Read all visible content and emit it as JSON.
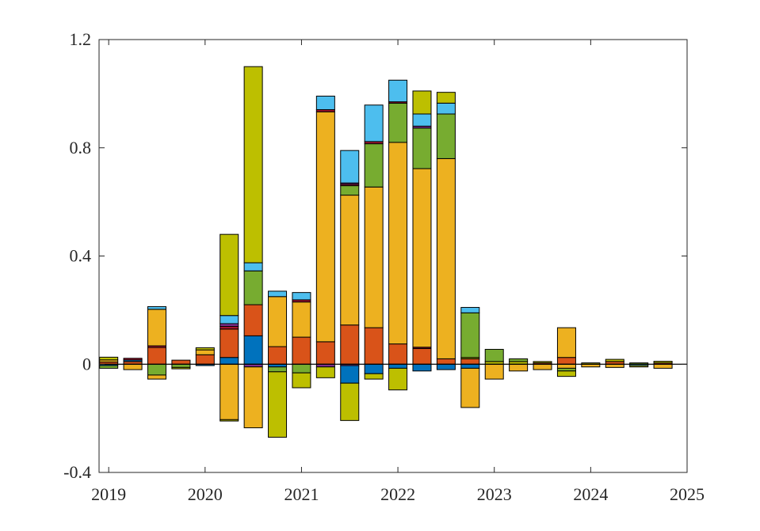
{
  "chart_data": {
    "type": "bar",
    "stacked": true,
    "grid": false,
    "legend": "none",
    "title": "",
    "xlabel": "",
    "ylabel": "",
    "ylim": [
      -0.4,
      1.2
    ],
    "xlim": [
      2018.9,
      2025
    ],
    "yticks": [
      -0.4,
      0,
      0.4,
      0.8,
      1.2
    ],
    "ytick_labels": [
      "-0.4",
      "0",
      "0.4",
      "0.8",
      "1.2"
    ],
    "xticks": [
      2019,
      2020,
      2021,
      2022,
      2023,
      2024,
      2025
    ],
    "xtick_labels": [
      "2019",
      "2020",
      "2021",
      "2022",
      "2023",
      "2024",
      "2025"
    ],
    "colors": {
      "blue": "#0072BD",
      "red": "#D95319",
      "orange": "#EDB120",
      "purple": "#7E2F8E",
      "green": "#77AC30",
      "cyan": "#4DBEEE",
      "olive": "#BDBF00",
      "maroon": "#A2142F"
    },
    "bars": [
      {
        "x": 2019.0,
        "segments": [
          {
            "color": "red",
            "value": 0.008
          },
          {
            "color": "orange",
            "value": 0.008
          },
          {
            "color": "olive",
            "value": 0.01
          },
          {
            "color": "blue",
            "value": -0.005
          },
          {
            "color": "green",
            "value": -0.01
          }
        ]
      },
      {
        "x": 2019.25,
        "segments": [
          {
            "color": "red",
            "value": 0.01
          },
          {
            "color": "blue",
            "value": 0.006
          },
          {
            "color": "maroon",
            "value": 0.006
          },
          {
            "color": "orange",
            "value": -0.02
          }
        ]
      },
      {
        "x": 2019.5,
        "segments": [
          {
            "color": "red",
            "value": 0.062
          },
          {
            "color": "maroon",
            "value": 0.006
          },
          {
            "color": "orange",
            "value": 0.135
          },
          {
            "color": "cyan",
            "value": 0.01
          },
          {
            "color": "green",
            "value": -0.04
          },
          {
            "color": "orange",
            "value": -0.015
          }
        ]
      },
      {
        "x": 2019.75,
        "segments": [
          {
            "color": "red",
            "value": 0.015
          },
          {
            "color": "green",
            "value": -0.012
          },
          {
            "color": "olive",
            "value": -0.005
          }
        ]
      },
      {
        "x": 2020.0,
        "segments": [
          {
            "color": "red",
            "value": 0.035
          },
          {
            "color": "orange",
            "value": 0.018
          },
          {
            "color": "olive",
            "value": 0.008
          },
          {
            "color": "blue",
            "value": -0.005
          }
        ]
      },
      {
        "x": 2020.25,
        "segments": [
          {
            "color": "blue",
            "value": 0.025
          },
          {
            "color": "red",
            "value": 0.105
          },
          {
            "color": "maroon",
            "value": 0.01
          },
          {
            "color": "purple",
            "value": 0.01
          },
          {
            "color": "cyan",
            "value": 0.03
          },
          {
            "color": "olive",
            "value": 0.3
          },
          {
            "color": "orange",
            "value": -0.205
          },
          {
            "color": "olive",
            "value": -0.005
          }
        ]
      },
      {
        "x": 2020.5,
        "segments": [
          {
            "color": "blue",
            "value": 0.105
          },
          {
            "color": "red",
            "value": 0.115
          },
          {
            "color": "green",
            "value": 0.125
          },
          {
            "color": "cyan",
            "value": 0.03
          },
          {
            "color": "olive",
            "value": 0.725
          },
          {
            "color": "purple",
            "value": -0.01
          },
          {
            "color": "orange",
            "value": -0.225
          }
        ]
      },
      {
        "x": 2020.75,
        "segments": [
          {
            "color": "red",
            "value": 0.065
          },
          {
            "color": "orange",
            "value": 0.185
          },
          {
            "color": "cyan",
            "value": 0.02
          },
          {
            "color": "blue",
            "value": -0.01
          },
          {
            "color": "green",
            "value": -0.018
          },
          {
            "color": "olive",
            "value": -0.242
          }
        ]
      },
      {
        "x": 2021.0,
        "segments": [
          {
            "color": "red",
            "value": 0.1
          },
          {
            "color": "orange",
            "value": 0.13
          },
          {
            "color": "maroon",
            "value": 0.008
          },
          {
            "color": "cyan",
            "value": 0.027
          },
          {
            "color": "green",
            "value": -0.032
          },
          {
            "color": "olive",
            "value": -0.055
          }
        ]
      },
      {
        "x": 2021.25,
        "segments": [
          {
            "color": "red",
            "value": 0.083
          },
          {
            "color": "orange",
            "value": 0.85
          },
          {
            "color": "maroon",
            "value": 0.008
          },
          {
            "color": "cyan",
            "value": 0.05
          },
          {
            "color": "purple",
            "value": -0.01
          },
          {
            "color": "olive",
            "value": -0.04
          }
        ]
      },
      {
        "x": 2021.5,
        "segments": [
          {
            "color": "red",
            "value": 0.145
          },
          {
            "color": "orange",
            "value": 0.48
          },
          {
            "color": "green",
            "value": 0.035
          },
          {
            "color": "maroon",
            "value": 0.005
          },
          {
            "color": "purple",
            "value": 0.005
          },
          {
            "color": "cyan",
            "value": 0.12
          },
          {
            "color": "purple",
            "value": -0.005
          },
          {
            "color": "blue",
            "value": -0.065
          },
          {
            "color": "olive",
            "value": -0.138
          }
        ]
      },
      {
        "x": 2021.75,
        "segments": [
          {
            "color": "red",
            "value": 0.135
          },
          {
            "color": "orange",
            "value": 0.52
          },
          {
            "color": "green",
            "value": 0.16
          },
          {
            "color": "maroon",
            "value": 0.008
          },
          {
            "color": "cyan",
            "value": 0.135
          },
          {
            "color": "blue",
            "value": -0.035
          },
          {
            "color": "olive",
            "value": -0.02
          }
        ]
      },
      {
        "x": 2022.0,
        "segments": [
          {
            "color": "red",
            "value": 0.075
          },
          {
            "color": "orange",
            "value": 0.745
          },
          {
            "color": "green",
            "value": 0.145
          },
          {
            "color": "maroon",
            "value": 0.005
          },
          {
            "color": "cyan",
            "value": 0.08
          },
          {
            "color": "blue",
            "value": -0.015
          },
          {
            "color": "olive",
            "value": -0.08
          }
        ]
      },
      {
        "x": 2022.25,
        "segments": [
          {
            "color": "red",
            "value": 0.058
          },
          {
            "color": "maroon",
            "value": 0.005
          },
          {
            "color": "orange",
            "value": 0.66
          },
          {
            "color": "green",
            "value": 0.15
          },
          {
            "color": "purple",
            "value": 0.007
          },
          {
            "color": "cyan",
            "value": 0.045
          },
          {
            "color": "olive",
            "value": 0.085
          },
          {
            "color": "blue",
            "value": -0.025
          }
        ]
      },
      {
        "x": 2022.5,
        "segments": [
          {
            "color": "red",
            "value": 0.02
          },
          {
            "color": "orange",
            "value": 0.74
          },
          {
            "color": "green",
            "value": 0.165
          },
          {
            "color": "cyan",
            "value": 0.04
          },
          {
            "color": "olive",
            "value": 0.04
          },
          {
            "color": "blue",
            "value": -0.02
          }
        ]
      },
      {
        "x": 2022.75,
        "segments": [
          {
            "color": "red",
            "value": 0.02
          },
          {
            "color": "olive",
            "value": 0.005
          },
          {
            "color": "green",
            "value": 0.165
          },
          {
            "color": "cyan",
            "value": 0.02
          },
          {
            "color": "blue",
            "value": -0.015
          },
          {
            "color": "orange",
            "value": -0.145
          }
        ]
      },
      {
        "x": 2023.0,
        "segments": [
          {
            "color": "olive",
            "value": 0.01
          },
          {
            "color": "green",
            "value": 0.045
          },
          {
            "color": "orange",
            "value": -0.055
          }
        ]
      },
      {
        "x": 2023.25,
        "segments": [
          {
            "color": "olive",
            "value": 0.01
          },
          {
            "color": "green",
            "value": 0.01
          },
          {
            "color": "orange",
            "value": -0.025
          }
        ]
      },
      {
        "x": 2023.5,
        "segments": [
          {
            "color": "red",
            "value": 0.005
          },
          {
            "color": "olive",
            "value": 0.005
          },
          {
            "color": "orange",
            "value": -0.02
          }
        ]
      },
      {
        "x": 2023.75,
        "segments": [
          {
            "color": "red",
            "value": 0.025
          },
          {
            "color": "orange",
            "value": 0.11
          },
          {
            "color": "orange",
            "value": -0.015
          },
          {
            "color": "green",
            "value": -0.01
          },
          {
            "color": "olive",
            "value": -0.02
          }
        ]
      },
      {
        "x": 2024.0,
        "segments": [
          {
            "color": "olive",
            "value": 0.005
          },
          {
            "color": "orange",
            "value": -0.01
          }
        ]
      },
      {
        "x": 2024.25,
        "segments": [
          {
            "color": "red",
            "value": 0.01
          },
          {
            "color": "olive",
            "value": 0.008
          },
          {
            "color": "orange",
            "value": -0.012
          }
        ]
      },
      {
        "x": 2024.5,
        "segments": [
          {
            "color": "green",
            "value": 0.005
          },
          {
            "color": "cyan",
            "value": -0.005
          },
          {
            "color": "olive",
            "value": -0.005
          }
        ]
      },
      {
        "x": 2024.75,
        "segments": [
          {
            "color": "red",
            "value": 0.005
          },
          {
            "color": "olive",
            "value": 0.006
          },
          {
            "color": "orange",
            "value": -0.015
          }
        ]
      }
    ]
  }
}
